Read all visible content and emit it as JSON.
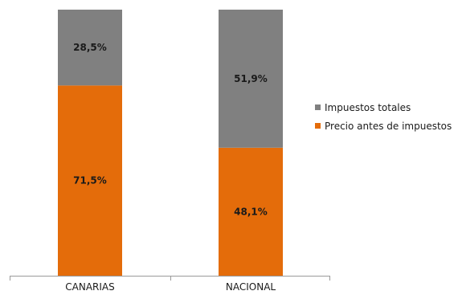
{
  "chart_data": {
    "type": "bar",
    "stacked": true,
    "percent_stacked": true,
    "categories": [
      "CANARIAS",
      "NACIONAL"
    ],
    "series": [
      {
        "name": "Precio antes de impuestos",
        "values": [
          71.5,
          48.1
        ],
        "labels": [
          "71,5%",
          "48,1%"
        ],
        "color": "#e46c0a"
      },
      {
        "name": "Impuestos totales",
        "values": [
          28.5,
          51.9
        ],
        "labels": [
          "28,5%",
          "51,9%"
        ],
        "color": "#808080"
      }
    ],
    "ylim": [
      0,
      100
    ],
    "grid": false,
    "legend_position": "right"
  },
  "legend": [
    {
      "label": "Impuestos totales",
      "color": "#808080"
    },
    {
      "label": "Precio antes de impuestos",
      "color": "#e46c0a"
    }
  ]
}
